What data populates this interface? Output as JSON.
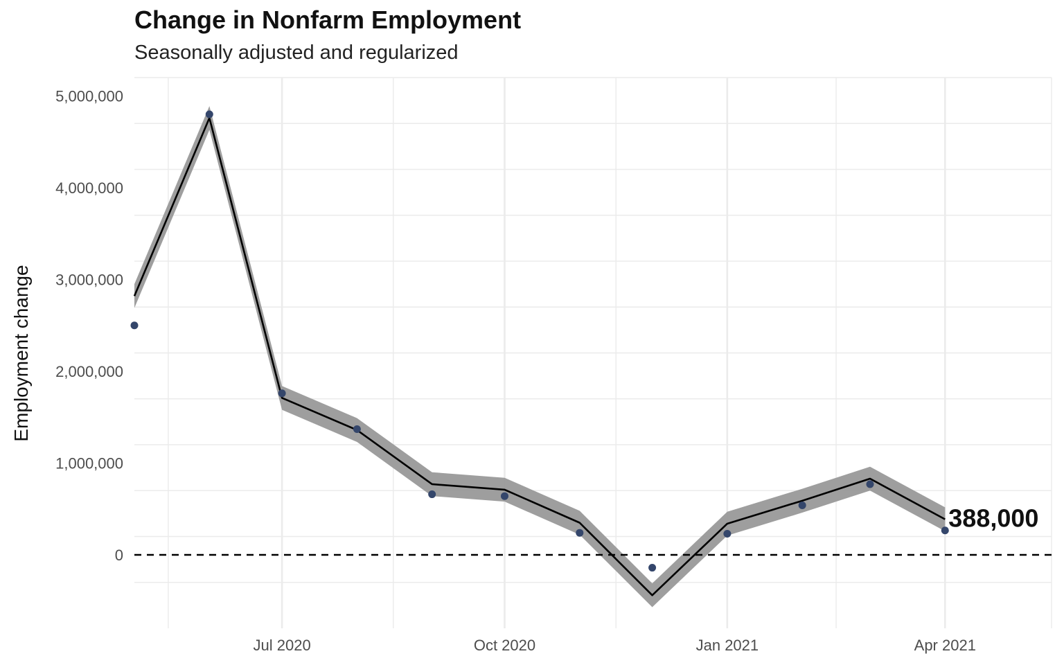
{
  "chart_data": {
    "type": "line",
    "title": "Change in Nonfarm Employment",
    "subtitle": "Seasonally adjusted and regularized",
    "xlabel": "",
    "ylabel": "Employment change",
    "x": [
      "2020-05-01",
      "2020-06-01",
      "2020-07-01",
      "2020-08-01",
      "2020-09-01",
      "2020-10-01",
      "2020-11-01",
      "2020-12-01",
      "2021-01-01",
      "2021-02-01",
      "2021-03-01",
      "2021-04-01"
    ],
    "series": [
      {
        "values": [
          2500000,
          4800000,
          1760000,
          1370000,
          660000,
          640000,
          240000,
          -140000,
          230000,
          540000,
          770000,
          266000
        ]
      },
      {
        "values": [
          2820000,
          4760000,
          1710000,
          1360000,
          770000,
          710000,
          350000,
          -440000,
          340000,
          590000,
          830000,
          388000
        ]
      }
    ],
    "band": {
      "half_width": 130000
    },
    "reference_line": {
      "y": 0,
      "style": "dashed"
    },
    "ylim": [
      -800000,
      5200000
    ],
    "xlim": [
      "2020-05-01",
      "2021-05-15"
    ],
    "y_ticks": [
      0,
      1000000,
      2000000,
      3000000,
      4000000,
      5000000
    ],
    "y_tick_labels": [
      "0",
      "1,000,000",
      "2,000,000",
      "3,000,000",
      "4,000,000",
      "5,000,000"
    ],
    "x_ticks": [
      "2020-07-01",
      "2020-10-01",
      "2021-01-01",
      "2021-04-01"
    ],
    "x_tick_labels": [
      "Jul 2020",
      "Oct 2020",
      "Jan 2021",
      "Apr 2021"
    ],
    "end_label": "388,000",
    "grid": true,
    "colors": {
      "points": "#34466b",
      "line": "#000000",
      "band": "#999999",
      "grid": "#ebebeb"
    }
  }
}
